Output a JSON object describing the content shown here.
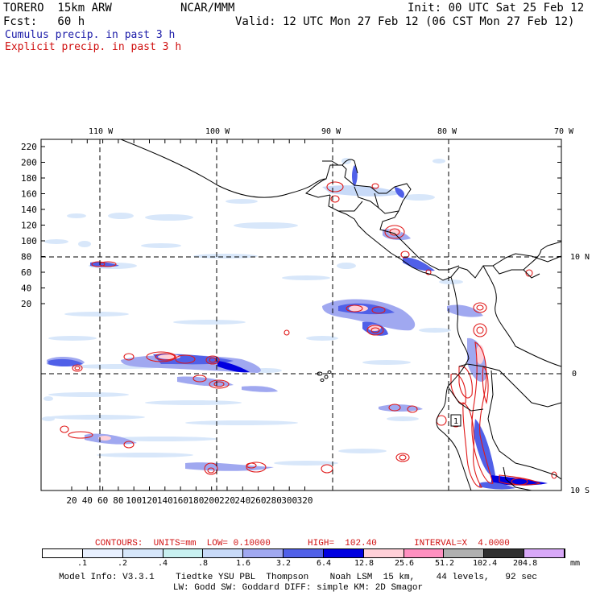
{
  "header": {
    "model": "TORERO  15km ARW",
    "org": "NCAR/MMM",
    "init": "Init: 00 UTC Sat 25 Feb 12",
    "fcst": "Fcst:   60 h",
    "valid": "Valid: 12 UTC Mon 27 Feb 12 (06 CST Mon 27 Feb 12)",
    "cumulus_label": "Cumulus precip. in past 3 h",
    "explicit_label": "Explicit precip. in past 3 h"
  },
  "map": {
    "lon_labels": [
      "110 W",
      "100 W",
      "90 W",
      "80 W",
      "70 W"
    ],
    "lat_labels": [
      "10 N",
      "0",
      "10 S"
    ],
    "y_ticks": [
      "220",
      "200",
      "180",
      "160",
      "140",
      "120",
      "100",
      "80",
      "60",
      "40",
      "20"
    ],
    "x_ticks": [
      "20",
      "40",
      "60",
      "80",
      "100",
      "120",
      "140",
      "160",
      "180",
      "200",
      "220",
      "240",
      "260",
      "280",
      "300",
      "320"
    ],
    "point_label": "1"
  },
  "legend": {
    "contours_text": "CONTOURS:  UNITS=mm  LOW= 0.10000       HIGH=  102.40       INTERVAL=X  4.0000",
    "levels": [
      ".1",
      ".2",
      ".4",
      ".8",
      "1.6",
      "3.2",
      "6.4",
      "12.8",
      "25.6",
      "51.2",
      "102.4",
      "204.8"
    ],
    "unit": "mm",
    "colors": [
      "#ffffff",
      "#e8f0ff",
      "#d6e6fa",
      "#c8f0f0",
      "#c8daf8",
      "#a0a8f0",
      "#5060e8",
      "#0000e0",
      "#ffd0d8",
      "#ff90c0",
      "#b0b0b0",
      "#303030",
      "#d8a8f8"
    ]
  },
  "footer": {
    "line1": "Model Info: V3.3.1    Tiedtke YSU PBL  Thompson    Noah LSM  15 km,    44 levels,   92 sec",
    "line2": "LW: Godd SW: Goddard DIFF: simple KM: 2D Smagor"
  }
}
